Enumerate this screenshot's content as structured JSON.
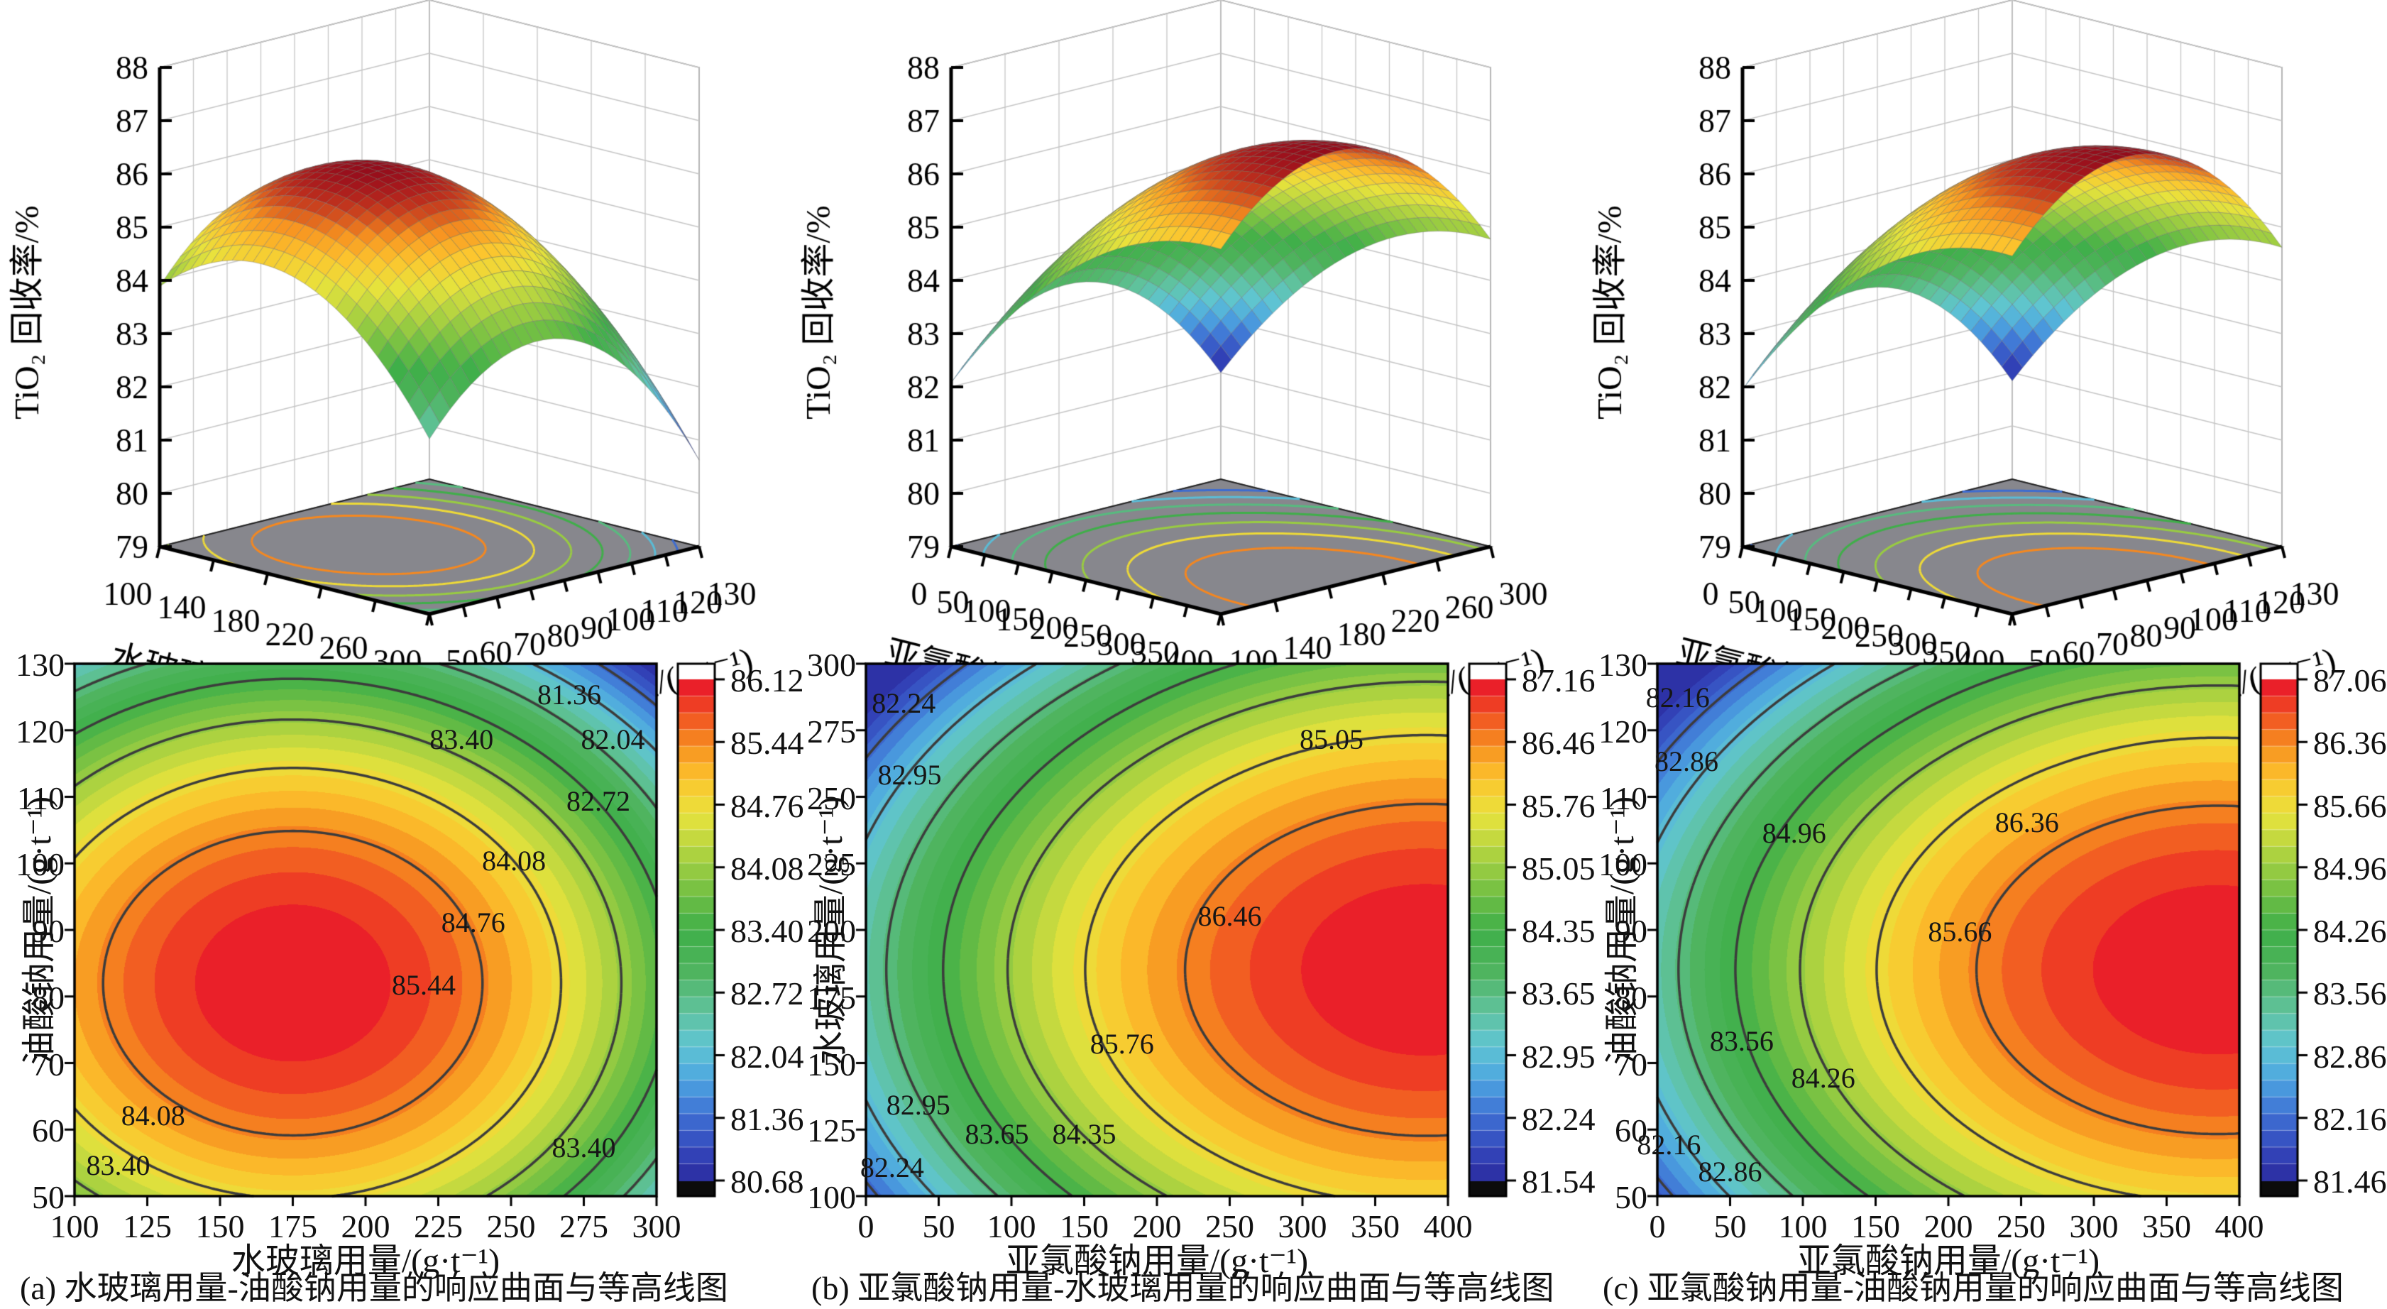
{
  "figure_type": "response-surface-and-contour-figure",
  "style": {
    "background": "#ffffff",
    "floor_color": "#87878d",
    "wall_grid_color": "#c6c6c6",
    "wall_edge_color": "#777777",
    "axis_color": "#000000",
    "contour_line_color": "#3c3c3c",
    "colormap": [
      [
        0,
        "#2a2a9e"
      ],
      [
        0.06,
        "#3346bb"
      ],
      [
        0.13,
        "#3e6fd3"
      ],
      [
        0.2,
        "#4da5e0"
      ],
      [
        0.27,
        "#5fc5d2"
      ],
      [
        0.34,
        "#5fc29b"
      ],
      [
        0.42,
        "#4eb35c"
      ],
      [
        0.5,
        "#3faf49"
      ],
      [
        0.58,
        "#77c143"
      ],
      [
        0.66,
        "#b4d440"
      ],
      [
        0.73,
        "#e8e33c"
      ],
      [
        0.8,
        "#fcc52e"
      ],
      [
        0.87,
        "#f78d1f"
      ],
      [
        0.94,
        "#ef4623"
      ],
      [
        1,
        "#e8112b"
      ]
    ]
  },
  "chart_data": [
    {
      "id": "a",
      "type": "surface3d-with-contour2d",
      "caption": "(a) 水玻璃用量-油酸钠用量的响应曲面与等高线图",
      "xlabel": "水玻璃用量/(g·t⁻¹)",
      "ylabel": "油酸钠用量/(g·t⁻¹)",
      "zlabel": "TiO₂ 回收率/%",
      "x_range": [
        100,
        300
      ],
      "y_range": [
        50,
        130
      ],
      "z_range": [
        79,
        88
      ],
      "x_ticks_3d": [
        100,
        140,
        180,
        220,
        260,
        300
      ],
      "y_ticks_3d": [
        50,
        60,
        70,
        80,
        90,
        100,
        110,
        120,
        130
      ],
      "z_ticks": [
        79,
        80,
        81,
        82,
        83,
        84,
        85,
        86,
        87,
        88
      ],
      "x_ticks_2d": [
        100,
        125,
        150,
        175,
        200,
        225,
        250,
        275,
        300
      ],
      "y_ticks_2d": [
        50,
        60,
        70,
        80,
        90,
        100,
        110,
        120,
        130
      ],
      "model": {
        "peak": 86.12,
        "x0": 175,
        "y0": 82,
        "ax": 0.00016,
        "by": 0.0013
      },
      "contour_levels": [
        81.36,
        82.04,
        82.72,
        83.4,
        84.08,
        84.76,
        85.44
      ],
      "contour_labels": [
        {
          "text": "81.36",
          "fx": 0.85,
          "fy": 0.945
        },
        {
          "text": "83.40",
          "fx": 0.665,
          "fy": 0.862
        },
        {
          "text": "82.04",
          "fx": 0.925,
          "fy": 0.862
        },
        {
          "text": "82.72",
          "fx": 0.9,
          "fy": 0.745
        },
        {
          "text": "84.08",
          "fx": 0.755,
          "fy": 0.633
        },
        {
          "text": "84.76",
          "fx": 0.685,
          "fy": 0.518
        },
        {
          "text": "85.44",
          "fx": 0.6,
          "fy": 0.4
        },
        {
          "text": "84.08",
          "fx": 0.135,
          "fy": 0.155
        },
        {
          "text": "83.40",
          "fx": 0.075,
          "fy": 0.062
        },
        {
          "text": "83.40",
          "fx": 0.875,
          "fy": 0.095
        }
      ],
      "colorbar": {
        "vmin": 80.68,
        "vmax": 86.12,
        "tick_labels": [
          "86.12",
          "85.44",
          "84.76",
          "84.08",
          "83.40",
          "82.72",
          "82.04",
          "81.36",
          "80.68"
        ]
      }
    },
    {
      "id": "b",
      "type": "surface3d-with-contour2d",
      "caption": "(b) 亚氯酸钠用量-水玻璃用量的响应曲面与等高线图",
      "xlabel": "亚氯酸钠用量/(g·t⁻¹)",
      "ylabel": "水玻璃用量/(g·t⁻¹)",
      "zlabel": "TiO₂ 回收率/%",
      "x_range": [
        0,
        400
      ],
      "y_range": [
        100,
        300
      ],
      "z_range": [
        79,
        88
      ],
      "x_ticks_3d": [
        0,
        50,
        100,
        150,
        200,
        250,
        300,
        350,
        400
      ],
      "y_ticks_3d": [
        100,
        140,
        180,
        220,
        260,
        300
      ],
      "z_ticks": [
        79,
        80,
        81,
        82,
        83,
        84,
        85,
        86,
        87,
        88
      ],
      "x_ticks_2d": [
        0,
        50,
        100,
        150,
        200,
        250,
        300,
        350,
        400
      ],
      "y_ticks_2d": [
        100,
        125,
        150,
        175,
        200,
        225,
        250,
        275,
        300
      ],
      "model": {
        "peak": 87.16,
        "x0": 385,
        "y0": 185,
        "ax": 2.55e-05,
        "by": 0.00018
      },
      "contour_levels": [
        82.24,
        82.95,
        83.65,
        84.35,
        85.05,
        85.76,
        86.46
      ],
      "contour_labels": [
        {
          "text": "82.24",
          "fx": 0.065,
          "fy": 0.93
        },
        {
          "text": "82.95",
          "fx": 0.075,
          "fy": 0.795
        },
        {
          "text": "85.05",
          "fx": 0.8,
          "fy": 0.862
        },
        {
          "text": "86.46",
          "fx": 0.625,
          "fy": 0.53
        },
        {
          "text": "85.76",
          "fx": 0.44,
          "fy": 0.29
        },
        {
          "text": "82.95",
          "fx": 0.09,
          "fy": 0.175
        },
        {
          "text": "83.65",
          "fx": 0.225,
          "fy": 0.12
        },
        {
          "text": "84.35",
          "fx": 0.375,
          "fy": 0.12
        },
        {
          "text": "82.24",
          "fx": 0.045,
          "fy": 0.058
        }
      ],
      "colorbar": {
        "vmin": 81.54,
        "vmax": 87.16,
        "tick_labels": [
          "87.16",
          "86.46",
          "85.76",
          "85.05",
          "84.35",
          "83.65",
          "82.95",
          "82.24",
          "81.54"
        ]
      }
    },
    {
      "id": "c",
      "type": "surface3d-with-contour2d",
      "caption": "(c) 亚氯酸钠用量-油酸钠用量的响应曲面与等高线图",
      "xlabel": "亚氯酸钠用量/(g·t⁻¹)",
      "ylabel": "油酸钠用量/(g·t⁻¹)",
      "zlabel": "TiO₂ 回收率/%",
      "x_range": [
        0,
        400
      ],
      "y_range": [
        50,
        130
      ],
      "z_range": [
        79,
        88
      ],
      "x_ticks_3d": [
        0,
        50,
        100,
        150,
        200,
        250,
        300,
        350,
        400
      ],
      "y_ticks_3d": [
        50,
        60,
        70,
        80,
        90,
        100,
        110,
        120,
        130
      ],
      "z_ticks": [
        79,
        80,
        81,
        82,
        83,
        84,
        85,
        86,
        87,
        88
      ],
      "x_ticks_2d": [
        0,
        50,
        100,
        150,
        200,
        250,
        300,
        350,
        400
      ],
      "y_ticks_2d": [
        50,
        60,
        70,
        80,
        90,
        100,
        110,
        120,
        130
      ],
      "model": {
        "peak": 87.06,
        "x0": 385,
        "y0": 84,
        "ax": 2.55e-05,
        "by": 0.00115
      },
      "contour_levels": [
        82.16,
        82.86,
        83.56,
        84.26,
        84.96,
        85.66,
        86.36
      ],
      "contour_labels": [
        {
          "text": "82.16",
          "fx": 0.035,
          "fy": 0.94
        },
        {
          "text": "82.86",
          "fx": 0.05,
          "fy": 0.82
        },
        {
          "text": "84.96",
          "fx": 0.235,
          "fy": 0.685
        },
        {
          "text": "86.36",
          "fx": 0.635,
          "fy": 0.705
        },
        {
          "text": "85.66",
          "fx": 0.52,
          "fy": 0.5
        },
        {
          "text": "83.56",
          "fx": 0.145,
          "fy": 0.295
        },
        {
          "text": "84.26",
          "fx": 0.285,
          "fy": 0.225
        },
        {
          "text": "82.16",
          "fx": 0.02,
          "fy": 0.1
        },
        {
          "text": "82.86",
          "fx": 0.125,
          "fy": 0.05
        }
      ],
      "colorbar": {
        "vmin": 81.46,
        "vmax": 87.06,
        "tick_labels": [
          "87.06",
          "86.36",
          "85.66",
          "84.96",
          "84.26",
          "83.56",
          "82.86",
          "82.16",
          "81.46"
        ]
      }
    }
  ]
}
